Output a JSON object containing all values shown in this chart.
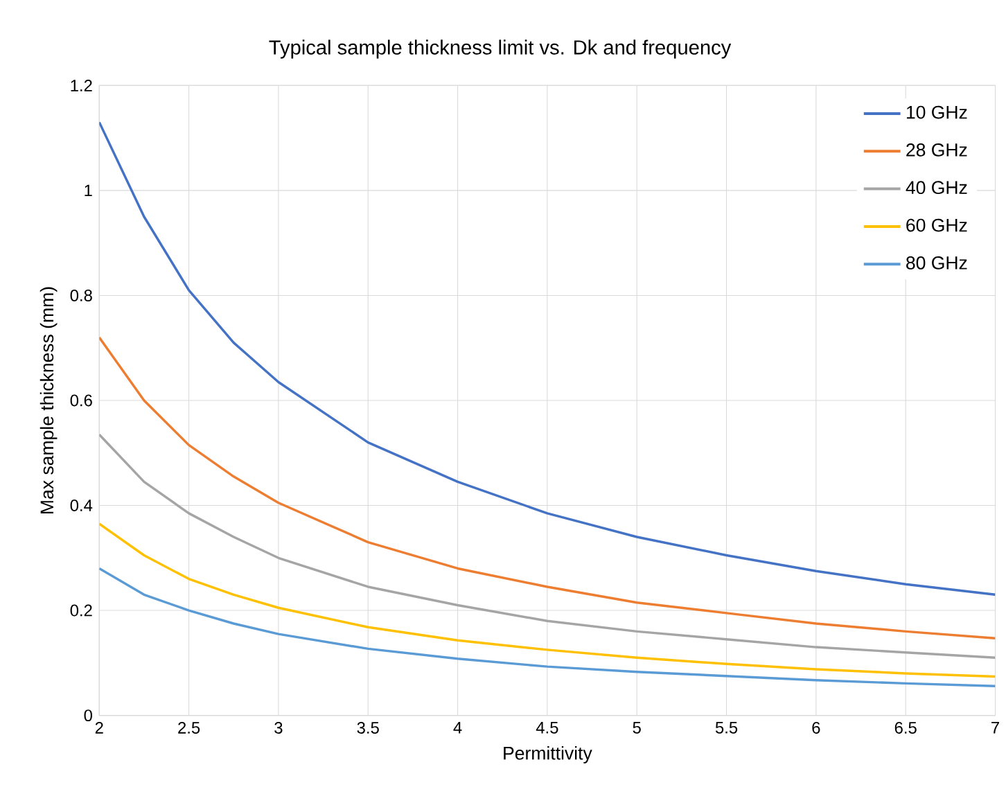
{
  "chart_data": {
    "type": "line",
    "title": "Typical sample thickness limit vs. Dk and frequency",
    "xlabel": "Permittivity",
    "ylabel": "Max sample thickness (mm)",
    "x": [
      2,
      2.25,
      2.5,
      2.75,
      3,
      3.5,
      4,
      4.5,
      5,
      5.5,
      6,
      6.5,
      7
    ],
    "series": [
      {
        "name": "10 GHz",
        "color": "#4472c4",
        "values": [
          1.13,
          0.95,
          0.81,
          0.71,
          0.635,
          0.52,
          0.445,
          0.385,
          0.34,
          0.305,
          0.275,
          0.25,
          0.23
        ]
      },
      {
        "name": "28 GHz",
        "color": "#ed7d31",
        "values": [
          0.72,
          0.6,
          0.515,
          0.455,
          0.405,
          0.33,
          0.28,
          0.245,
          0.215,
          0.195,
          0.175,
          0.16,
          0.147
        ]
      },
      {
        "name": "40 GHz",
        "color": "#a5a5a5",
        "values": [
          0.535,
          0.445,
          0.385,
          0.34,
          0.3,
          0.245,
          0.21,
          0.18,
          0.16,
          0.145,
          0.13,
          0.12,
          0.11
        ]
      },
      {
        "name": "60 GHz",
        "color": "#ffc000",
        "values": [
          0.365,
          0.305,
          0.26,
          0.23,
          0.205,
          0.168,
          0.143,
          0.125,
          0.11,
          0.098,
          0.088,
          0.08,
          0.074
        ]
      },
      {
        "name": "80 GHz",
        "color": "#5b9bd5",
        "values": [
          0.28,
          0.23,
          0.2,
          0.175,
          0.155,
          0.127,
          0.108,
          0.093,
          0.083,
          0.075,
          0.067,
          0.061,
          0.056
        ]
      }
    ],
    "xlim": [
      2,
      7
    ],
    "ylim": [
      0,
      1.2
    ],
    "xticks": [
      2,
      2.5,
      3,
      3.5,
      4,
      4.5,
      5,
      5.5,
      6,
      6.5,
      7
    ],
    "yticks": [
      0,
      0.2,
      0.4,
      0.6,
      0.8,
      1,
      1.2
    ],
    "grid": true,
    "legend": "top right",
    "marker": "none",
    "line_style": "solid"
  }
}
